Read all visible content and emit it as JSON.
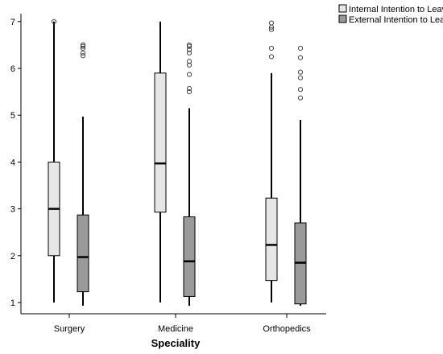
{
  "chart_data": {
    "type": "boxplot",
    "xlabel": "Speciality",
    "ylabel": "",
    "ylim": [
      1,
      7
    ],
    "y_ticks": [
      "1",
      "2",
      "3",
      "4",
      "5",
      "6",
      "7"
    ],
    "categories": [
      "Surgery",
      "Medicine",
      "Orthopedics"
    ],
    "legend_position": "top-right",
    "series": [
      {
        "name": "Internal Intention to Leave",
        "color": "#e6e6e6",
        "boxes": [
          {
            "min": 1.0,
            "q1": 2.0,
            "median": 3.0,
            "q3": 4.0,
            "max": 7.0,
            "outliers": [
              7.0
            ]
          },
          {
            "min": 1.0,
            "q1": 2.93,
            "median": 3.97,
            "q3": 5.9,
            "max": 7.0,
            "outliers": []
          },
          {
            "min": 1.0,
            "q1": 1.47,
            "median": 2.23,
            "q3": 3.23,
            "max": 5.9,
            "outliers": [
              6.25,
              6.43,
              6.83,
              6.88,
              6.97
            ]
          }
        ]
      },
      {
        "name": "External Intention to Leave",
        "color": "#9a9a9a",
        "boxes": [
          {
            "min": 0.93,
            "q1": 1.23,
            "median": 1.97,
            "q3": 2.87,
            "max": 4.97,
            "outliers": [
              6.27,
              6.33,
              6.43,
              6.47,
              6.5
            ]
          },
          {
            "min": 0.93,
            "q1": 1.13,
            "median": 1.88,
            "q3": 2.83,
            "max": 5.15,
            "outliers": [
              5.5,
              5.57,
              5.87,
              6.07,
              6.15,
              6.33,
              6.4,
              6.47,
              6.5
            ]
          },
          {
            "min": 0.93,
            "q1": 0.97,
            "median": 1.85,
            "q3": 2.7,
            "max": 4.9,
            "outliers": [
              5.37,
              5.55,
              5.8,
              5.92,
              6.23,
              6.43
            ]
          }
        ]
      }
    ]
  }
}
